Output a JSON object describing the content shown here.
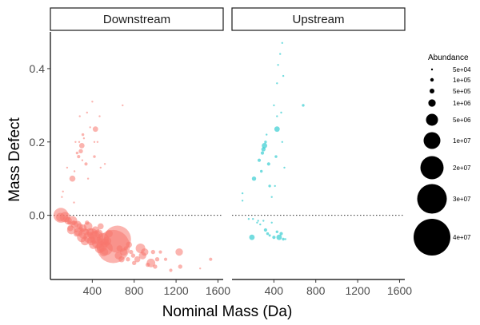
{
  "chart_data": {
    "type": "scatter",
    "xlabel": "Nominal Mass (Da)",
    "ylabel": "Mass Defect",
    "xlim": [
      0,
      1650
    ],
    "ylim": [
      -0.175,
      0.5
    ],
    "x_ticks": [
      400,
      800,
      1200,
      1600
    ],
    "y_ticks": [
      -0.0,
      0.2,
      0.4
    ],
    "y_tick_labels": [
      "0.0",
      "0.2",
      "0.4"
    ],
    "x_tick_labels": [
      "400",
      "800",
      "1200",
      "1600"
    ],
    "reference_line": {
      "y": 0,
      "style": "dotted"
    },
    "grid": false,
    "legend": {
      "title": "Abundance",
      "placement": "right",
      "entries": [
        {
          "label": "5e+04",
          "size": 50000
        },
        {
          "label": "1e+05",
          "size": 100000
        },
        {
          "label": "5e+05",
          "size": 500000
        },
        {
          "label": "1e+06",
          "size": 1000000
        },
        {
          "label": "5e+06",
          "size": 5000000
        },
        {
          "label": "1e+07",
          "size": 10000000
        },
        {
          "label": "2e+07",
          "size": 20000000
        },
        {
          "label": "3e+07",
          "size": 30000000
        },
        {
          "label": "4e+07",
          "size": 40000000
        }
      ]
    },
    "panels": [
      {
        "name": "Downstream",
        "color": "#F8766D",
        "points": [
          [
            100,
            0.0,
            6000000
          ],
          [
            95,
            -0.005,
            2000000
          ],
          [
            110,
            0.05,
            100000
          ],
          [
            140,
            -0.005,
            3000000
          ],
          [
            150,
            -0.01,
            1000000
          ],
          [
            170,
            -0.015,
            1500000
          ],
          [
            180,
            -0.02,
            500000
          ],
          [
            190,
            -0.035,
            1000000
          ],
          [
            200,
            -0.04,
            2000000
          ],
          [
            210,
            -0.015,
            2500000
          ],
          [
            220,
            -0.02,
            500000
          ],
          [
            230,
            -0.025,
            1500000
          ],
          [
            245,
            -0.04,
            500000
          ],
          [
            250,
            -0.05,
            1000000
          ],
          [
            260,
            -0.025,
            1500000
          ],
          [
            270,
            -0.045,
            2000000
          ],
          [
            280,
            -0.03,
            1000000
          ],
          [
            290,
            -0.04,
            1000000
          ],
          [
            300,
            -0.06,
            2500000
          ],
          [
            310,
            -0.035,
            1500000
          ],
          [
            320,
            -0.05,
            3000000
          ],
          [
            330,
            -0.07,
            2000000
          ],
          [
            340,
            -0.045,
            1000000
          ],
          [
            350,
            -0.02,
            500000
          ],
          [
            360,
            -0.03,
            2000000
          ],
          [
            370,
            -0.06,
            3500000
          ],
          [
            380,
            -0.045,
            1500000
          ],
          [
            390,
            -0.07,
            2000000
          ],
          [
            400,
            -0.05,
            3000000
          ],
          [
            410,
            -0.08,
            2000000
          ],
          [
            420,
            -0.06,
            4000000
          ],
          [
            430,
            -0.04,
            1500000
          ],
          [
            440,
            -0.06,
            5000000
          ],
          [
            450,
            -0.075,
            3500000
          ],
          [
            460,
            -0.05,
            2000000
          ],
          [
            470,
            -0.09,
            2500000
          ],
          [
            480,
            -0.03,
            1000000
          ],
          [
            490,
            -0.085,
            3000000
          ],
          [
            500,
            -0.065,
            4000000
          ],
          [
            510,
            -0.1,
            2000000
          ],
          [
            520,
            -0.075,
            2000000
          ],
          [
            530,
            -0.09,
            5000000
          ],
          [
            540,
            -0.07,
            2000000
          ],
          [
            560,
            -0.05,
            1500000
          ],
          [
            600,
            -0.085,
            30000000
          ],
          [
            640,
            -0.065,
            20000000
          ],
          [
            650,
            -0.11,
            1500000
          ],
          [
            660,
            -0.09,
            1000000
          ],
          [
            680,
            -0.12,
            1000000
          ],
          [
            700,
            -0.1,
            1500000
          ],
          [
            720,
            -0.09,
            500000
          ],
          [
            740,
            -0.12,
            500000
          ],
          [
            750,
            -0.08,
            1000000
          ],
          [
            770,
            -0.1,
            500000
          ],
          [
            790,
            -0.11,
            500000
          ],
          [
            800,
            -0.13,
            500000
          ],
          [
            830,
            -0.12,
            1000000
          ],
          [
            860,
            -0.09,
            2500000
          ],
          [
            880,
            -0.11,
            1500000
          ],
          [
            900,
            -0.1,
            1500000
          ],
          [
            930,
            -0.135,
            500000
          ],
          [
            960,
            -0.13,
            2000000
          ],
          [
            980,
            -0.1,
            500000
          ],
          [
            1000,
            -0.14,
            500000
          ],
          [
            1020,
            -0.12,
            500000
          ],
          [
            1050,
            -0.1,
            300000
          ],
          [
            1100,
            -0.12,
            300000
          ],
          [
            1150,
            -0.15,
            300000
          ],
          [
            1230,
            -0.1,
            1500000
          ],
          [
            1240,
            -0.14,
            500000
          ],
          [
            1530,
            -0.12,
            300000
          ],
          [
            1430,
            -0.145,
            100000
          ],
          [
            120,
            0.065,
            50000
          ],
          [
            160,
            0.13,
            50000
          ],
          [
            210,
            0.1,
            1000000
          ],
          [
            225,
            0.035,
            50000
          ],
          [
            230,
            0.12,
            50000
          ],
          [
            240,
            0.2,
            100000
          ],
          [
            255,
            0.17,
            200000
          ],
          [
            270,
            0.16,
            300000
          ],
          [
            275,
            0.2,
            50000
          ],
          [
            280,
            0.27,
            50000
          ],
          [
            290,
            0.175,
            500000
          ],
          [
            300,
            0.19,
            800000
          ],
          [
            305,
            0.15,
            100000
          ],
          [
            310,
            0.22,
            200000
          ],
          [
            320,
            0.21,
            100000
          ],
          [
            340,
            0.14,
            300000
          ],
          [
            350,
            0.28,
            50000
          ],
          [
            360,
            0.1,
            100000
          ],
          [
            380,
            0.24,
            100000
          ],
          [
            400,
            0.31,
            50000
          ],
          [
            420,
            0.16,
            200000
          ],
          [
            430,
            0.235,
            800000
          ],
          [
            450,
            0.2,
            50000
          ],
          [
            470,
            0.27,
            50000
          ],
          [
            480,
            0.13,
            100000
          ],
          [
            520,
            0.14,
            50000
          ],
          [
            690,
            0.3,
            50000
          ],
          [
            420,
            0.2,
            50000
          ]
        ]
      },
      {
        "name": "Upstream",
        "color": "#00BFC4",
        "points": [
          [
            100,
            0.06,
            100000
          ],
          [
            100,
            0.04,
            50000
          ],
          [
            210,
            0.1,
            500000
          ],
          [
            260,
            0.15,
            300000
          ],
          [
            280,
            0.12,
            200000
          ],
          [
            290,
            0.17,
            300000
          ],
          [
            300,
            0.18,
            500000
          ],
          [
            310,
            0.19,
            800000
          ],
          [
            320,
            0.2,
            200000
          ],
          [
            330,
            0.22,
            100000
          ],
          [
            350,
            0.14,
            300000
          ],
          [
            360,
            0.08,
            200000
          ],
          [
            380,
            0.05,
            100000
          ],
          [
            400,
            0.3,
            100000
          ],
          [
            420,
            0.16,
            200000
          ],
          [
            430,
            0.235,
            800000
          ],
          [
            430,
            0.36,
            100000
          ],
          [
            440,
            0.41,
            50000
          ],
          [
            460,
            0.44,
            50000
          ],
          [
            480,
            0.47,
            100000
          ],
          [
            490,
            0.38,
            50000
          ],
          [
            470,
            0.28,
            100000
          ],
          [
            480,
            0.2,
            100000
          ],
          [
            500,
            0.13,
            100000
          ],
          [
            680,
            0.3,
            200000
          ],
          [
            430,
            0.27,
            50000
          ],
          [
            410,
            0.08,
            50000
          ],
          [
            160,
            -0.01,
            50000
          ],
          [
            190,
            -0.06,
            800000
          ],
          [
            200,
            -0.01,
            100000
          ],
          [
            240,
            -0.02,
            100000
          ],
          [
            250,
            -0.015,
            50000
          ],
          [
            270,
            -0.025,
            100000
          ],
          [
            300,
            -0.015,
            50000
          ],
          [
            320,
            -0.04,
            300000
          ],
          [
            340,
            -0.05,
            200000
          ],
          [
            360,
            -0.055,
            150000
          ],
          [
            380,
            -0.02,
            50000
          ],
          [
            400,
            -0.06,
            300000
          ],
          [
            430,
            -0.045,
            200000
          ],
          [
            450,
            -0.06,
            800000
          ],
          [
            470,
            -0.05,
            300000
          ],
          [
            490,
            -0.065,
            200000
          ],
          [
            510,
            -0.065,
            100000
          ]
        ]
      }
    ]
  }
}
